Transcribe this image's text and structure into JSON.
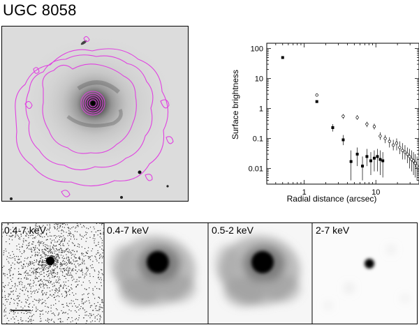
{
  "figure": {
    "title": "UGC 8058"
  },
  "colors": {
    "contour": "#e040e0",
    "marker": "#000000",
    "frame": "#000000"
  },
  "panels": [
    {
      "label": "0.4-7 keV",
      "style": "raw-counts"
    },
    {
      "label": "0.4-7 keV",
      "style": "smoothed"
    },
    {
      "label": "0.5-2 keV",
      "style": "smoothed"
    },
    {
      "label": "2-7 keV",
      "style": "point-source"
    }
  ],
  "chart_data": {
    "type": "scatter",
    "xlabel": "Radial distance (arcsec)",
    "ylabel": "Surface brightness",
    "x_scale": "log",
    "y_scale": "log",
    "xlim": [
      0.3,
      40
    ],
    "ylim": [
      0.003,
      150
    ],
    "xticks": [
      {
        "value": 1,
        "label": "1"
      },
      {
        "value": 10,
        "label": "10"
      }
    ],
    "yticks": [
      {
        "value": 0.01,
        "label": "0.01"
      },
      {
        "value": 0.1,
        "label": "0.1"
      },
      {
        "value": 1,
        "label": "1"
      },
      {
        "value": 10,
        "label": "10"
      },
      {
        "value": 100,
        "label": "100"
      }
    ],
    "series": [
      {
        "marker": "filled-square",
        "points": [
          {
            "x": 0.5,
            "y": 50
          },
          {
            "x": 1.5,
            "y": 1.7
          },
          {
            "x": 2.5,
            "y": 0.23,
            "ylo": 0.17,
            "yhi": 0.3
          },
          {
            "x": 3.5,
            "y": 0.09,
            "ylo": 0.06,
            "yhi": 0.13
          },
          {
            "x": 4.5,
            "y": 0.017,
            "ylo": 0.004,
            "yhi": 0.04
          },
          {
            "x": 5.5,
            "y": 0.03,
            "ylo": 0.012,
            "yhi": 0.05
          },
          {
            "x": 6.5,
            "y": 0.012,
            "ylo": 0.004,
            "yhi": 0.025
          },
          {
            "x": 7.5,
            "y": 0.025,
            "ylo": 0.012,
            "yhi": 0.045
          },
          {
            "x": 8.5,
            "y": 0.018,
            "ylo": 0.006,
            "yhi": 0.035
          },
          {
            "x": 9.5,
            "y": 0.022,
            "ylo": 0.008,
            "yhi": 0.04
          },
          {
            "x": 10.5,
            "y": 0.025,
            "ylo": 0.008,
            "yhi": 0.045
          },
          {
            "x": 11.5,
            "y": 0.02,
            "ylo": 0.006,
            "yhi": 0.04
          },
          {
            "x": 12.5,
            "y": 0.018,
            "ylo": 0.005,
            "yhi": 0.035
          }
        ]
      },
      {
        "marker": "open-circle",
        "points": [
          {
            "x": 1.5,
            "y": 2.8
          },
          {
            "x": 3.5,
            "y": 0.55,
            "ylo": 0.45,
            "yhi": 0.65
          },
          {
            "x": 5.5,
            "y": 0.5,
            "ylo": 0.42,
            "yhi": 0.6
          },
          {
            "x": 7.5,
            "y": 0.3,
            "ylo": 0.24,
            "yhi": 0.36
          },
          {
            "x": 9.5,
            "y": 0.25,
            "ylo": 0.2,
            "yhi": 0.31
          },
          {
            "x": 11.5,
            "y": 0.12,
            "ylo": 0.09,
            "yhi": 0.16
          },
          {
            "x": 13.5,
            "y": 0.1,
            "ylo": 0.07,
            "yhi": 0.13
          },
          {
            "x": 15.5,
            "y": 0.08,
            "ylo": 0.05,
            "yhi": 0.11
          },
          {
            "x": 17.5,
            "y": 0.06,
            "ylo": 0.04,
            "yhi": 0.09
          },
          {
            "x": 19.5,
            "y": 0.07,
            "ylo": 0.04,
            "yhi": 0.1
          },
          {
            "x": 21.5,
            "y": 0.05,
            "ylo": 0.03,
            "yhi": 0.08
          },
          {
            "x": 23.5,
            "y": 0.04,
            "ylo": 0.02,
            "yhi": 0.07
          },
          {
            "x": 25.5,
            "y": 0.035,
            "ylo": 0.02,
            "yhi": 0.06
          },
          {
            "x": 27.5,
            "y": 0.03,
            "ylo": 0.015,
            "yhi": 0.05
          },
          {
            "x": 29.5,
            "y": 0.025,
            "ylo": 0.01,
            "yhi": 0.045
          },
          {
            "x": 31.5,
            "y": 0.02,
            "ylo": 0.008,
            "yhi": 0.04
          },
          {
            "x": 33.5,
            "y": 0.018,
            "ylo": 0.006,
            "yhi": 0.035
          },
          {
            "x": 35.5,
            "y": 0.015,
            "ylo": 0.005,
            "yhi": 0.03
          },
          {
            "x": 37.5,
            "y": 0.012,
            "ylo": 0.004,
            "yhi": 0.025
          }
        ]
      }
    ]
  }
}
